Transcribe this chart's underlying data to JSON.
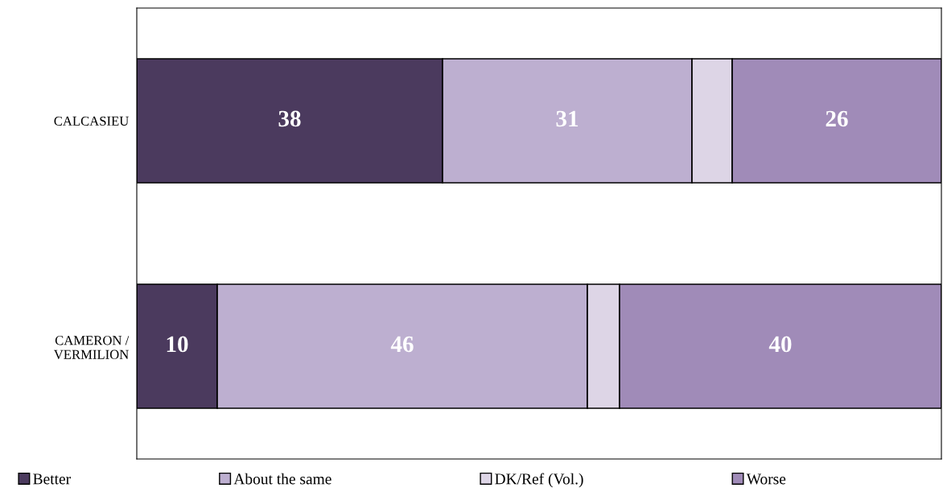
{
  "chart_data": {
    "type": "bar",
    "orientation": "horizontal",
    "stacked": true,
    "categories": [
      "CALCASIEU",
      "CAMERON / VERMILION"
    ],
    "series": [
      {
        "name": "Better",
        "color": "#4b3a5e",
        "values": [
          38,
          10
        ],
        "value_labels": [
          "38",
          "10"
        ]
      },
      {
        "name": "About the same",
        "color": "#bdafd0",
        "values": [
          31,
          46
        ],
        "value_labels": [
          "31",
          "46"
        ]
      },
      {
        "name": "DK/Ref (Vol.)",
        "color": "#ddd5e6",
        "values": [
          5,
          4
        ],
        "value_labels": [
          null,
          null
        ]
      },
      {
        "name": "Worse",
        "color": "#a08bb8",
        "values": [
          26,
          40
        ],
        "value_labels": [
          "26",
          "40"
        ]
      }
    ],
    "xlim": [
      0,
      100
    ],
    "tick_labels": "y",
    "legend": "bottom",
    "grid": false
  }
}
